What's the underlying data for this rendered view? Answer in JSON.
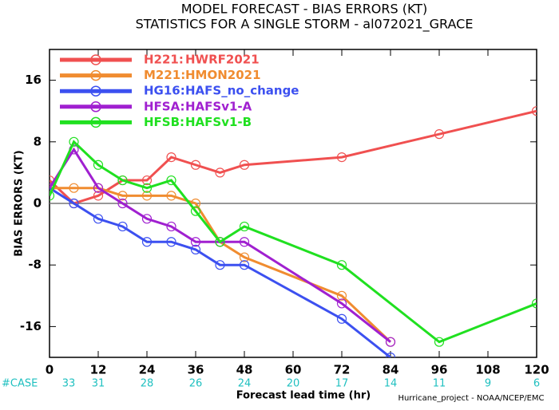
{
  "chart_data": {
    "type": "line",
    "title": "MODEL FORECAST - BIAS ERRORS (KT)",
    "subtitle": "STATISTICS FOR A SINGLE STORM - al072021_GRACE",
    "x_label": "Forecast lead time (hr)",
    "y_label": "BIAS ERRORS (KT)",
    "xlim": [
      0,
      120
    ],
    "xticks": [
      0,
      12,
      24,
      36,
      48,
      60,
      72,
      84,
      96,
      108,
      120
    ],
    "ylim": [
      -20,
      20
    ],
    "yticks": [
      -16,
      -8,
      0,
      8,
      16
    ],
    "zero_line": true,
    "legend": "upper left",
    "series": [
      {
        "code": "H221:",
        "name": "HWRF2021",
        "color": "#f05050",
        "x": [
          0,
          6,
          12,
          18,
          24,
          30,
          36,
          42,
          48,
          72,
          96,
          120
        ],
        "values": [
          3,
          0,
          1,
          3,
          3,
          6,
          5,
          4,
          5,
          6,
          9,
          12
        ]
      },
      {
        "code": "M221:",
        "name": "HMON2021",
        "color": "#f08c30",
        "x": [
          0,
          6,
          12,
          18,
          24,
          30,
          36,
          42,
          48,
          72,
          84
        ],
        "values": [
          2,
          2,
          2,
          1,
          1,
          1,
          0,
          -5,
          -7,
          -12,
          -18
        ]
      },
      {
        "code": "HG16:",
        "name": "HAFS_no_change",
        "color": "#3c50f0",
        "x": [
          0,
          6,
          12,
          18,
          24,
          30,
          36,
          42,
          48,
          72,
          84
        ],
        "values": [
          2,
          0,
          -2,
          -3,
          -5,
          -5,
          -6,
          -8,
          -8,
          -15,
          -20
        ]
      },
      {
        "code": "HFSA:",
        "name": "HAFSv1-A",
        "color": "#a020d0",
        "x": [
          0,
          6,
          12,
          18,
          24,
          30,
          36,
          42,
          48,
          72,
          84
        ],
        "values": [
          2,
          7,
          2,
          0,
          -2,
          -3,
          -5,
          -5,
          -5,
          -13,
          -18
        ]
      },
      {
        "code": "HFSB:",
        "name": "HAFSv1-B",
        "color": "#20e020",
        "x": [
          0,
          6,
          12,
          18,
          24,
          30,
          36,
          42,
          48,
          72,
          96,
          120
        ],
        "values": [
          1,
          8,
          5,
          3,
          2,
          3,
          -1,
          -5,
          -3,
          -8,
          -18,
          -13
        ]
      }
    ],
    "case_label": "#CASE",
    "case_x": [
      0,
      12,
      24,
      36,
      48,
      60,
      72,
      84,
      96,
      108,
      120
    ],
    "cases": [
      33,
      31,
      28,
      26,
      24,
      20,
      17,
      14,
      11,
      9,
      6
    ],
    "case_color": "#20c0c0",
    "footer": "Hurricane_project - NOAA/NCEP/EMC"
  }
}
